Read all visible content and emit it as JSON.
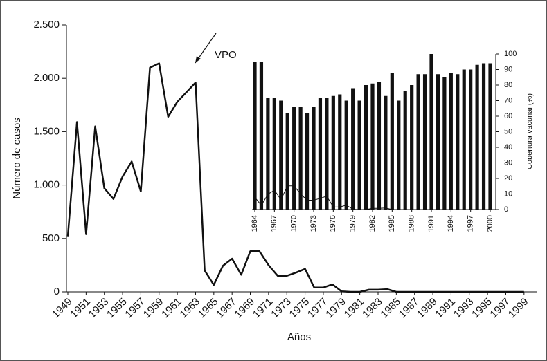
{
  "chart_data": [
    {
      "type": "line",
      "x": [
        1949,
        1950,
        1951,
        1952,
        1953,
        1954,
        1955,
        1956,
        1957,
        1958,
        1959,
        1960,
        1961,
        1962,
        1963,
        1964,
        1965,
        1966,
        1967,
        1968,
        1969,
        1970,
        1971,
        1972,
        1973,
        1974,
        1975,
        1976,
        1977,
        1978,
        1979,
        1980,
        1981,
        1982,
        1983,
        1984,
        1985,
        1986,
        1987,
        1988,
        1989,
        1990,
        1991,
        1992,
        1993,
        1994,
        1995,
        1996,
        1997,
        1998,
        1999
      ],
      "values": [
        520,
        1590,
        540,
        1550,
        970,
        870,
        1080,
        1220,
        940,
        2100,
        2140,
        1640,
        1780,
        1870,
        1960,
        200,
        65,
        245,
        310,
        160,
        380,
        380,
        250,
        150,
        150,
        180,
        215,
        40,
        40,
        70,
        5,
        0,
        0,
        20,
        20,
        25,
        0,
        0,
        0,
        0,
        0,
        0,
        0,
        0,
        0,
        0,
        0,
        0,
        0,
        0,
        0
      ],
      "color": "#111111",
      "xlim": [
        1949,
        2000
      ],
      "xticks": [
        1949,
        1951,
        1953,
        1955,
        1957,
        1959,
        1961,
        1963,
        1965,
        1967,
        1969,
        1971,
        1973,
        1975,
        1977,
        1979,
        1981,
        1983,
        1985,
        1987,
        1989,
        1991,
        1993,
        1995,
        1997,
        1999
      ],
      "ylim": [
        0,
        2500
      ],
      "yticks": [
        0,
        500,
        {
          "value": 1000,
          "label": "1.000"
        },
        {
          "value": 1500,
          "label": "1.500"
        },
        {
          "value": 2000,
          "label": "2.000"
        },
        {
          "value": 2500,
          "label": "2.500"
        }
      ],
      "xlabel": "Años",
      "ylabel": "Número de casos",
      "annotation": "VPO"
    },
    {
      "type": "bar",
      "x": [
        1964,
        1965,
        1966,
        1967,
        1968,
        1969,
        1970,
        1971,
        1972,
        1973,
        1974,
        1975,
        1976,
        1977,
        1978,
        1979,
        1980,
        1981,
        1982,
        1983,
        1984,
        1985,
        1986,
        1987,
        1988,
        1989,
        1990,
        1991,
        1992,
        1993,
        1994,
        1995,
        1996,
        1997,
        1998,
        1999,
        2000
      ],
      "values": [
        95,
        95,
        72,
        72,
        70,
        62,
        66,
        66,
        62,
        66,
        72,
        72,
        73,
        74,
        70,
        78,
        70,
        80,
        81,
        82,
        73,
        88,
        70,
        76,
        80,
        87,
        87,
        100,
        87,
        85,
        88,
        87,
        90,
        90,
        93,
        94,
        94
      ],
      "color": "#111111",
      "xlim": [
        1964,
        2000
      ],
      "xticks": [
        1964,
        1967,
        1970,
        1973,
        1976,
        1979,
        1982,
        1985,
        1988,
        1991,
        1994,
        1997,
        2000
      ],
      "y2lim": [
        0,
        100
      ],
      "y2ticks": [
        0,
        10,
        20,
        30,
        40,
        50,
        60,
        70,
        80,
        90,
        100
      ],
      "y2label": "Cobertura vacunal (%)"
    }
  ]
}
